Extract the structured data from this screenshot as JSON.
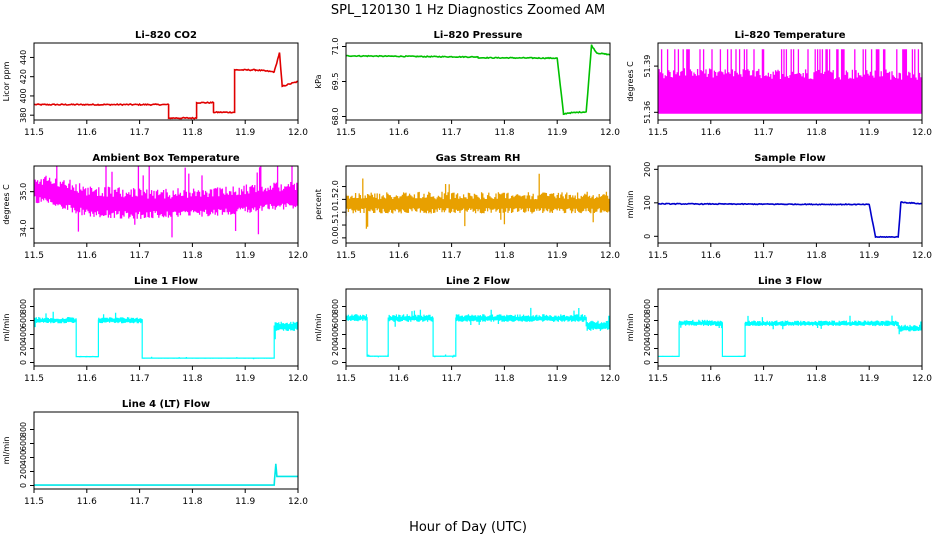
{
  "figure": {
    "title": "SPL_120130  1 Hz Diagnostics Zoomed AM",
    "xlabel": "Hour of Day (UTC)"
  },
  "chart_data": [
    {
      "type": "line",
      "title": "Li–820 CO2",
      "ylabel": "Licor ppm",
      "color": "#e00000",
      "xlim": [
        11.5,
        12.0
      ],
      "ylim": [
        375,
        455
      ],
      "xticks": [
        "11.5",
        "11.6",
        "11.7",
        "11.8",
        "11.9",
        "12.0"
      ],
      "yticks": [
        380,
        400,
        420,
        440
      ],
      "noise": 0.6,
      "x": [
        11.5,
        11.755,
        11.755,
        11.808,
        11.808,
        11.84,
        11.84,
        11.88,
        11.88,
        11.92,
        11.955,
        11.965,
        11.97,
        12.0
      ],
      "y": [
        391,
        391,
        377,
        377,
        393,
        393,
        383,
        383,
        427,
        427,
        425,
        445,
        410,
        415
      ]
    },
    {
      "type": "line",
      "title": "Li–820 Pressure",
      "ylabel": "kPa",
      "color": "#00c000",
      "xlim": [
        11.5,
        12.0
      ],
      "ylim": [
        67.85,
        71.15
      ],
      "xticks": [
        "11.5",
        "11.6",
        "11.7",
        "11.8",
        "11.9",
        "12.0"
      ],
      "yticks": [
        "68.0",
        "69.5",
        "71.0"
      ],
      "noise": 0.02,
      "x": [
        11.5,
        11.75,
        11.75,
        11.9,
        11.912,
        11.92,
        11.955,
        11.965,
        11.975,
        12.0
      ],
      "y": [
        70.6,
        70.55,
        70.52,
        70.5,
        68.1,
        68.15,
        68.2,
        71.05,
        70.72,
        70.65
      ]
    },
    {
      "type": "band",
      "title": "Li–820 Temperature",
      "ylabel": "degrees C",
      "color": "#ff00ff",
      "xlim": [
        11.5,
        12.0
      ],
      "ylim": [
        51.355,
        51.405
      ],
      "xticks": [
        "11.5",
        "11.6",
        "11.7",
        "11.8",
        "11.9",
        "12.0"
      ],
      "yticks": [
        "51.36",
        "51.39"
      ],
      "x": [
        11.5,
        12.0
      ],
      "y_low": [
        51.359,
        51.359
      ],
      "y_high": [
        51.401,
        51.401
      ],
      "y_base_top": [
        51.382,
        51.381
      ]
    },
    {
      "type": "band",
      "title": "Ambient Box Temperature",
      "ylabel": "degrees C",
      "color": "#ff00ff",
      "xlim": [
        11.5,
        12.0
      ],
      "ylim": [
        33.6,
        35.7
      ],
      "xticks": [
        "11.5",
        "11.6",
        "11.7",
        "11.8",
        "11.9",
        "12.0"
      ],
      "yticks": [
        "34.0",
        "35.0"
      ],
      "x": [
        11.5,
        11.55,
        11.6,
        11.7,
        11.8,
        11.9,
        12.0
      ],
      "y_low": [
        34.7,
        34.5,
        34.3,
        34.25,
        34.3,
        34.4,
        34.55
      ],
      "y_high": [
        35.5,
        35.4,
        35.2,
        35.1,
        35.1,
        35.2,
        35.3
      ]
    },
    {
      "type": "band",
      "title": "Gas Stream RH",
      "ylabel": "percent",
      "color": "#e8a000",
      "xlim": [
        11.5,
        12.0
      ],
      "ylim": [
        -0.2,
        2.8
      ],
      "xticks": [
        "11.5",
        "11.6",
        "11.7",
        "11.8",
        "11.9",
        "12.0"
      ],
      "yticks": [
        "0.0",
        "0.5",
        "1.0",
        "1.5",
        "2.0"
      ],
      "x": [
        11.5,
        11.6,
        11.7,
        11.8,
        11.9,
        12.0
      ],
      "y_low": [
        0.95,
        0.95,
        0.95,
        0.95,
        0.95,
        0.95
      ],
      "y_high": [
        1.8,
        1.8,
        1.8,
        1.8,
        1.8,
        1.8
      ]
    },
    {
      "type": "line",
      "title": "Sample Flow",
      "ylabel": "ml/min",
      "color": "#0000cc",
      "xlim": [
        11.5,
        12.0
      ],
      "ylim": [
        -20,
        210
      ],
      "xticks": [
        "11.5",
        "11.6",
        "11.7",
        "11.8",
        "11.9",
        "12.0"
      ],
      "yticks": [
        0,
        100,
        200
      ],
      "noise": 1.2,
      "x": [
        11.5,
        11.9,
        11.912,
        11.955,
        11.96,
        12.0
      ],
      "y": [
        97,
        95,
        -2,
        -2,
        102,
        97
      ]
    },
    {
      "type": "band",
      "title": "Line 1 Flow",
      "ylabel": "ml/min",
      "color": "#00ffff",
      "xlim": [
        11.5,
        12.0
      ],
      "ylim": [
        -50,
        1050
      ],
      "xticks": [
        "11.5",
        "11.6",
        "11.7",
        "11.8",
        "11.9",
        "12.0"
      ],
      "yticks": [
        0,
        200,
        400,
        600,
        800
      ],
      "x": [
        11.5,
        11.58,
        11.58,
        11.622,
        11.622,
        11.705,
        11.705,
        11.955,
        11.955,
        12.0
      ],
      "y_low": [
        560,
        560,
        75,
        75,
        560,
        560,
        55,
        55,
        450,
        450
      ],
      "y_high": [
        650,
        650,
        95,
        95,
        650,
        650,
        70,
        70,
        590,
        590
      ]
    },
    {
      "type": "band",
      "title": "Line 2 Flow",
      "ylabel": "ml/min",
      "color": "#00ffff",
      "xlim": [
        11.5,
        12.0
      ],
      "ylim": [
        -50,
        1050
      ],
      "xticks": [
        "11.5",
        "11.6",
        "11.7",
        "11.8",
        "11.9",
        "12.0"
      ],
      "yticks": [
        0,
        200,
        400,
        600,
        800
      ],
      "x": [
        11.5,
        11.54,
        11.54,
        11.58,
        11.58,
        11.665,
        11.665,
        11.708,
        11.708,
        11.955,
        11.955,
        12.0
      ],
      "y_low": [
        590,
        590,
        80,
        80,
        580,
        580,
        80,
        80,
        580,
        580,
        450,
        450
      ],
      "y_high": [
        690,
        690,
        100,
        100,
        690,
        690,
        100,
        100,
        690,
        690,
        600,
        600
      ]
    },
    {
      "type": "band",
      "title": "Line 3 Flow",
      "ylabel": "ml/min",
      "color": "#00ffff",
      "xlim": [
        11.5,
        12.0
      ],
      "ylim": [
        -50,
        1050
      ],
      "xticks": [
        "11.5",
        "11.6",
        "11.7",
        "11.8",
        "11.9",
        "12.0"
      ],
      "yticks": [
        0,
        200,
        400,
        600,
        800
      ],
      "x": [
        11.5,
        11.54,
        11.54,
        11.622,
        11.622,
        11.665,
        11.665,
        11.955,
        11.955,
        12.0
      ],
      "y_low": [
        80,
        80,
        520,
        520,
        80,
        80,
        520,
        520,
        440,
        440
      ],
      "y_high": [
        95,
        95,
        610,
        610,
        95,
        95,
        600,
        600,
        540,
        540
      ]
    },
    {
      "type": "line",
      "title": "Line 4 (LT) Flow",
      "ylabel": "ml/min",
      "color": "#00e8e8",
      "xlim": [
        11.5,
        12.0
      ],
      "ylim": [
        -50,
        1050
      ],
      "xticks": [
        "11.5",
        "11.6",
        "11.7",
        "11.8",
        "11.9",
        "12.0"
      ],
      "yticks": [
        0,
        200,
        400,
        600,
        800
      ],
      "noise": 0,
      "x": [
        11.5,
        11.955,
        11.956,
        11.958,
        11.96,
        11.962,
        12.0
      ],
      "y": [
        5,
        5,
        130,
        310,
        130,
        130,
        130
      ]
    }
  ]
}
